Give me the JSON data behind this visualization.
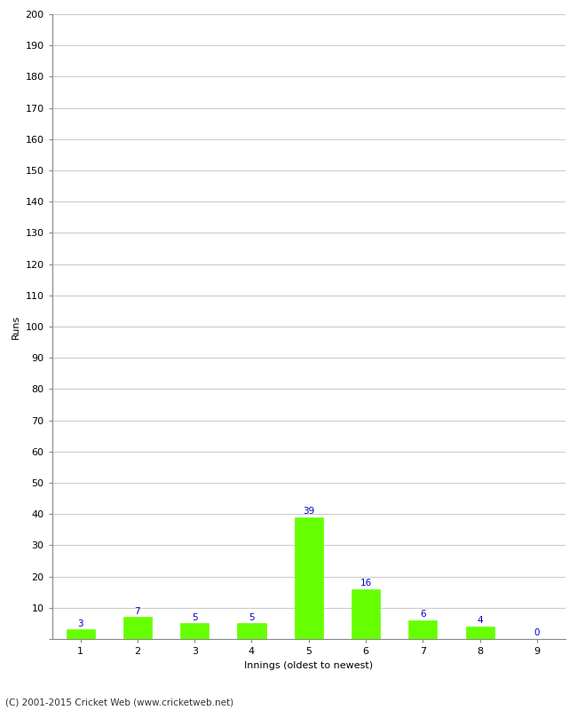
{
  "xlabel": "Innings (oldest to newest)",
  "ylabel": "Runs",
  "categories": [
    1,
    2,
    3,
    4,
    5,
    6,
    7,
    8,
    9
  ],
  "values": [
    3,
    7,
    5,
    5,
    39,
    16,
    6,
    4,
    0
  ],
  "bar_color": "#66ff00",
  "bar_edge_color": "#66ff00",
  "value_color": "#0000cc",
  "ylim": [
    0,
    200
  ],
  "yticks": [
    0,
    10,
    20,
    30,
    40,
    50,
    60,
    70,
    80,
    90,
    100,
    110,
    120,
    130,
    140,
    150,
    160,
    170,
    180,
    190,
    200
  ],
  "background_color": "#ffffff",
  "grid_color": "#cccccc",
  "footnote": "(C) 2001-2015 Cricket Web (www.cricketweb.net)",
  "value_fontsize": 7.5,
  "axis_label_fontsize": 8,
  "tick_fontsize": 8,
  "footnote_fontsize": 7.5,
  "bar_width": 0.5
}
